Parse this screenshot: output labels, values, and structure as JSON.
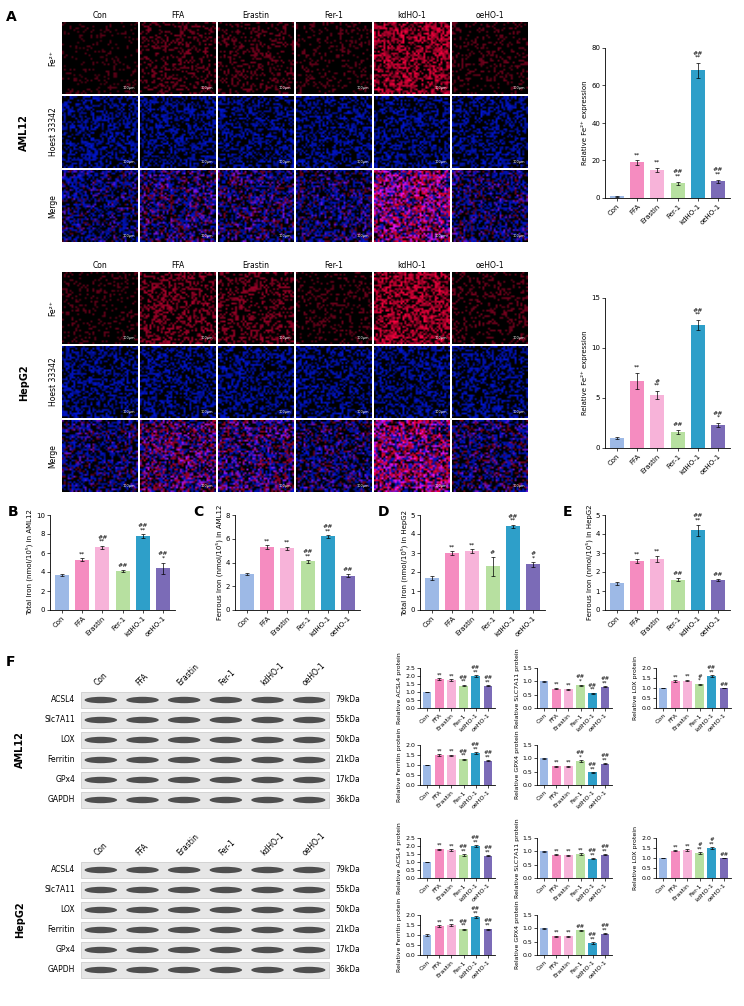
{
  "panel_labels": [
    "A",
    "B",
    "C",
    "D",
    "E",
    "F"
  ],
  "micrographs": [
    {
      "cell_line": "AML12",
      "columns": [
        "Con",
        "FFA",
        "Erastin",
        "Fer-1",
        "kdHO-1",
        "oeHO-1"
      ],
      "rows": [
        "Fe²⁺",
        "Hoest 33342",
        "Merge"
      ],
      "scale_bar": "100μm"
    },
    {
      "cell_line": "HepG2",
      "columns": [
        "Con",
        "FFA",
        "Erastin",
        "Fer-1",
        "kdHO-1",
        "oeHO-1"
      ],
      "rows": [
        "Fe²⁺",
        "Hoest 33342",
        "Merge"
      ],
      "scale_bar": "100μm"
    }
  ],
  "western_blots": [
    {
      "cell_line": "AML12",
      "lanes": [
        "Con",
        "FFA",
        "Erastin",
        "Fer-1",
        "kdHO-1",
        "oeHO-1"
      ],
      "proteins": [
        "ACSL4",
        "Slc7A11",
        "LOX",
        "Ferritin",
        "GPx4",
        "GAPDH"
      ],
      "sizes": [
        "79kDa",
        "55kDa",
        "50kDa",
        "21kDa",
        "17kDa",
        "36kDa"
      ]
    },
    {
      "cell_line": "HepG2",
      "lanes": [
        "Con",
        "FFA",
        "Erastin",
        "Fer-1",
        "kdHO-1",
        "oeHO-1"
      ],
      "proteins": [
        "ACSL4",
        "Slc7A11",
        "LOX",
        "Ferritin",
        "GPx4",
        "GAPDH"
      ],
      "sizes": [
        "79kDa",
        "55kDa",
        "50kDa",
        "21kDa",
        "17kDa",
        "36kDa"
      ]
    }
  ],
  "chart_data": [
    {
      "type": "bar",
      "ylabel": "Relative Fe²⁺ expression",
      "categories": [
        "Con",
        "FFA",
        "Erastin",
        "Fer-1",
        "kdHO-1",
        "oeHO-1"
      ],
      "values": [
        1,
        19,
        15,
        8,
        68,
        9
      ],
      "errors": [
        0.3,
        1.2,
        1.0,
        0.8,
        4,
        0.8
      ],
      "colors": [
        "#9db9e6",
        "#f58cc0",
        "#f7b3d9",
        "#b7e0a0",
        "#2e9fc9",
        "#7b6bb7"
      ],
      "significance": [
        [],
        [
          "**"
        ],
        [
          "**"
        ],
        [
          "##",
          "**"
        ],
        [
          "##",
          "**"
        ],
        [
          "##",
          "**"
        ]
      ],
      "ylim": [
        0,
        80
      ],
      "yticks": [
        0,
        20,
        40,
        60,
        80
      ]
    },
    {
      "type": "bar",
      "ylabel": "Relative Fe²⁺ expression",
      "categories": [
        "Con",
        "FFA",
        "Erastin",
        "Fer-1",
        "kdHO-1",
        "oeHO-1"
      ],
      "values": [
        1,
        6.7,
        5.3,
        1.6,
        12.3,
        2.3
      ],
      "errors": [
        0.1,
        0.8,
        0.4,
        0.2,
        0.5,
        0.2
      ],
      "colors": [
        "#9db9e6",
        "#f58cc0",
        "#f7b3d9",
        "#b7e0a0",
        "#2e9fc9",
        "#7b6bb7"
      ],
      "significance": [
        [],
        [
          "**"
        ],
        [
          "#",
          "**"
        ],
        [
          "##"
        ],
        [
          "##",
          "**"
        ],
        [
          "##",
          "*"
        ]
      ],
      "ylim": [
        0,
        15
      ],
      "yticks": [
        0,
        5,
        10,
        15
      ]
    },
    {
      "type": "bar",
      "ylabel": "Total Iron (nmol/10⁵) in AML12",
      "categories": [
        "Con",
        "FFA",
        "Erastin",
        "Fer-1",
        "kdHO-1",
        "oeHO-1"
      ],
      "values": [
        3.7,
        5.3,
        6.6,
        4.1,
        7.8,
        4.4
      ],
      "errors": [
        0.1,
        0.15,
        0.15,
        0.1,
        0.2,
        0.6
      ],
      "colors": [
        "#9db9e6",
        "#f58cc0",
        "#f7b3d9",
        "#b7e0a0",
        "#2e9fc9",
        "#7b6bb7"
      ],
      "significance": [
        [],
        [
          "**"
        ],
        [
          "##",
          "**"
        ],
        [
          "##"
        ],
        [
          "##",
          "**"
        ],
        [
          "##",
          "*"
        ]
      ],
      "ylim": [
        0,
        10
      ],
      "yticks": [
        0,
        2,
        4,
        6,
        8,
        10
      ]
    },
    {
      "type": "bar",
      "ylabel": "Ferrous Iron (nmol/10⁵) in AML12",
      "categories": [
        "Con",
        "FFA",
        "Erastin",
        "Fer-1",
        "kdHO-1",
        "oeHO-1"
      ],
      "values": [
        3.0,
        5.3,
        5.2,
        4.1,
        6.2,
        2.9
      ],
      "errors": [
        0.08,
        0.15,
        0.12,
        0.1,
        0.1,
        0.1
      ],
      "colors": [
        "#9db9e6",
        "#f58cc0",
        "#f7b3d9",
        "#b7e0a0",
        "#2e9fc9",
        "#7b6bb7"
      ],
      "significance": [
        [],
        [
          "**"
        ],
        [
          "**"
        ],
        [
          "##",
          "**"
        ],
        [
          "##",
          "**"
        ],
        [
          "##"
        ]
      ],
      "ylim": [
        0,
        8
      ],
      "yticks": [
        0,
        2,
        4,
        6,
        8
      ]
    },
    {
      "type": "bar",
      "ylabel": "Total Iron (nmol/10⁵) in HepG2",
      "categories": [
        "Con",
        "FFA",
        "Erastin",
        "Fer-1",
        "kdHO-1",
        "oeHO-1"
      ],
      "values": [
        1.7,
        3.0,
        3.1,
        2.3,
        4.4,
        2.4
      ],
      "errors": [
        0.1,
        0.08,
        0.1,
        0.5,
        0.08,
        0.12
      ],
      "colors": [
        "#9db9e6",
        "#f58cc0",
        "#f7b3d9",
        "#b7e0a0",
        "#2e9fc9",
        "#7b6bb7"
      ],
      "significance": [
        [],
        [
          "**"
        ],
        [
          "**"
        ],
        [
          "#"
        ],
        [
          "##",
          "**"
        ],
        [
          "#",
          "*"
        ]
      ],
      "ylim": [
        0,
        5
      ],
      "yticks": [
        0,
        1,
        2,
        3,
        4,
        5
      ]
    },
    {
      "type": "bar",
      "ylabel": "Ferrous Iron (nmol/10⁵) in HepG2",
      "categories": [
        "Con",
        "FFA",
        "Erastin",
        "Fer-1",
        "kdHO-1",
        "oeHO-1"
      ],
      "values": [
        1.4,
        2.6,
        2.7,
        1.6,
        4.2,
        1.6
      ],
      "errors": [
        0.1,
        0.1,
        0.15,
        0.08,
        0.3,
        0.05
      ],
      "colors": [
        "#9db9e6",
        "#f58cc0",
        "#f7b3d9",
        "#b7e0a0",
        "#2e9fc9",
        "#7b6bb7"
      ],
      "significance": [
        [],
        [
          "**"
        ],
        [
          "**"
        ],
        [
          "##"
        ],
        [
          "##",
          "**"
        ],
        [
          "##"
        ]
      ],
      "ylim": [
        0,
        5
      ],
      "yticks": [
        0,
        1,
        2,
        3,
        4,
        5
      ]
    },
    {
      "type": "bar",
      "ylabel": "Relative ACSL4 protein",
      "categories": [
        "Con",
        "FFA",
        "Erastin",
        "Fer-1",
        "kdHO-1",
        "oeHO-1"
      ],
      "values": [
        1.0,
        1.8,
        1.75,
        1.4,
        2.0,
        1.4
      ],
      "errors": [
        0.02,
        0.05,
        0.05,
        0.05,
        0.07,
        0.04
      ],
      "colors": [
        "#9db9e6",
        "#f58cc0",
        "#f7b3d9",
        "#b7e0a0",
        "#2e9fc9",
        "#7b6bb7"
      ],
      "significance": [
        [],
        [
          "**"
        ],
        [
          "**"
        ],
        [
          "##",
          "**"
        ],
        [
          "##",
          "**"
        ],
        [
          "##",
          "**"
        ]
      ],
      "ylim": [
        0,
        2.5
      ],
      "yticks": [
        {
          "value": 0,
          "label": "0.0"
        },
        0.5,
        {
          "value": 1,
          "label": "1.0"
        },
        1.5,
        {
          "value": 2,
          "label": "2.0"
        },
        2.5
      ]
    },
    {
      "type": "bar",
      "ylabel": "Relative SLC7A11 protein",
      "categories": [
        "Con",
        "FFA",
        "Erastin",
        "Fer-1",
        "kdHO-1",
        "oeHO-1"
      ],
      "values": [
        1.0,
        0.73,
        0.7,
        0.85,
        0.55,
        0.8
      ],
      "errors": [
        0.02,
        0.03,
        0.03,
        0.03,
        0.02,
        0.02
      ],
      "colors": [
        "#9db9e6",
        "#f58cc0",
        "#f7b3d9",
        "#b7e0a0",
        "#2e9fc9",
        "#7b6bb7"
      ],
      "significance": [
        [],
        [
          "**"
        ],
        [
          "**"
        ],
        [
          "##",
          "*"
        ],
        [
          "##",
          "**"
        ],
        [
          "##",
          "**"
        ]
      ],
      "ylim": [
        0,
        1.5
      ],
      "yticks": [
        {
          "value": 0,
          "label": "0.0"
        },
        0.5,
        {
          "value": 1,
          "label": "1.0"
        },
        1.5
      ]
    },
    {
      "type": "bar",
      "ylabel": "Relative LOX protein",
      "categories": [
        "Con",
        "FFA",
        "Erastin",
        "Fer-1",
        "kdHO-1",
        "oeHO-1"
      ],
      "values": [
        1.0,
        1.35,
        1.37,
        1.18,
        1.58,
        1.0
      ],
      "errors": [
        0.02,
        0.05,
        0.04,
        0.03,
        0.05,
        0.02
      ],
      "colors": [
        "#9db9e6",
        "#f58cc0",
        "#f7b3d9",
        "#b7e0a0",
        "#2e9fc9",
        "#7b6bb7"
      ],
      "significance": [
        [],
        [
          "**"
        ],
        [
          "**"
        ],
        [
          "#",
          "*"
        ],
        [
          "##",
          "**"
        ],
        [
          "##"
        ]
      ],
      "ylim": [
        0,
        2.0
      ],
      "yticks": [
        {
          "value": 0,
          "label": "0.0"
        },
        0.5,
        {
          "value": 1,
          "label": "1.0"
        },
        1.5,
        {
          "value": 2,
          "label": "2.0"
        }
      ]
    },
    {
      "type": "bar",
      "ylabel": "Relative Ferritin protein",
      "categories": [
        "Con",
        "FFA",
        "Erastin",
        "Fer-1",
        "kdHO-1",
        "oeHO-1"
      ],
      "values": [
        1.0,
        1.5,
        1.48,
        1.28,
        1.6,
        1.22
      ],
      "errors": [
        0.02,
        0.04,
        0.03,
        0.03,
        0.04,
        0.02
      ],
      "colors": [
        "#9db9e6",
        "#f58cc0",
        "#f7b3d9",
        "#b7e0a0",
        "#2e9fc9",
        "#7b6bb7"
      ],
      "significance": [
        [],
        [
          "**"
        ],
        [
          "**"
        ],
        [
          "##",
          "**"
        ],
        [
          "##",
          "**"
        ],
        [
          "##",
          "**"
        ]
      ],
      "ylim": [
        0,
        2.0
      ],
      "yticks": [
        {
          "value": 0,
          "label": "0.0"
        },
        0.5,
        {
          "value": 1,
          "label": "1.0"
        },
        1.5,
        {
          "value": 2,
          "label": "2.0"
        }
      ]
    },
    {
      "type": "bar",
      "ylabel": "Relative GPX4 protein",
      "categories": [
        "Con",
        "FFA",
        "Erastin",
        "Fer-1",
        "kdHO-1",
        "oeHO-1"
      ],
      "values": [
        1.0,
        0.7,
        0.7,
        0.9,
        0.47,
        0.8
      ],
      "errors": [
        0.02,
        0.02,
        0.02,
        0.03,
        0.02,
        0.02
      ],
      "colors": [
        "#9db9e6",
        "#f58cc0",
        "#f7b3d9",
        "#b7e0a0",
        "#2e9fc9",
        "#7b6bb7"
      ],
      "significance": [
        [],
        [
          "**"
        ],
        [
          "**"
        ],
        [
          "##",
          "*"
        ],
        [
          "##",
          "**"
        ],
        [
          "##",
          "**"
        ]
      ],
      "ylim": [
        0,
        1.5
      ],
      "yticks": [
        {
          "value": 0,
          "label": "0.0"
        },
        0.5,
        {
          "value": 1,
          "label": "1.0"
        },
        1.5
      ]
    },
    {
      "type": "bar",
      "ylabel": "Relative ACSL4 protein",
      "categories": [
        "Con",
        "FFA",
        "Erastin",
        "Fer-1",
        "kdHO-1",
        "oeHO-1"
      ],
      "values": [
        1.0,
        1.8,
        1.75,
        1.45,
        2.0,
        1.4
      ],
      "errors": [
        0.02,
        0.04,
        0.04,
        0.05,
        0.05,
        0.04
      ],
      "colors": [
        "#9db9e6",
        "#f58cc0",
        "#f7b3d9",
        "#b7e0a0",
        "#2e9fc9",
        "#7b6bb7"
      ],
      "significance": [
        [],
        [
          "**"
        ],
        [
          "**"
        ],
        [
          "##",
          "**"
        ],
        [
          "##",
          "**"
        ],
        [
          "##",
          "**"
        ]
      ],
      "ylim": [
        0,
        2.5
      ],
      "yticks": [
        {
          "value": 0,
          "label": "0.0"
        },
        0.5,
        {
          "value": 1,
          "label": "1.0"
        },
        1.5,
        {
          "value": 2,
          "label": "2.0"
        },
        2.5
      ]
    },
    {
      "type": "bar",
      "ylabel": "Relative SLC7A11 protein",
      "categories": [
        "Con",
        "FFA",
        "Erastin",
        "Fer-1",
        "kdHO-1",
        "oeHO-1"
      ],
      "values": [
        1.0,
        0.87,
        0.86,
        0.9,
        0.72,
        0.87
      ],
      "errors": [
        0.02,
        0.02,
        0.02,
        0.02,
        0.02,
        0.02
      ],
      "colors": [
        "#9db9e6",
        "#f58cc0",
        "#f7b3d9",
        "#b7e0a0",
        "#2e9fc9",
        "#7b6bb7"
      ],
      "significance": [
        [],
        [
          "**"
        ],
        [
          "**"
        ],
        [
          "**"
        ],
        [
          "##",
          "**"
        ],
        [
          "##",
          "**"
        ]
      ],
      "ylim": [
        0,
        1.5
      ],
      "yticks": [
        {
          "value": 0,
          "label": "0.0"
        },
        0.5,
        {
          "value": 1,
          "label": "1.0"
        },
        1.5
      ]
    },
    {
      "type": "bar",
      "ylabel": "Relative LOX protein",
      "categories": [
        "Con",
        "FFA",
        "Erastin",
        "Fer-1",
        "kdHO-1",
        "oeHO-1"
      ],
      "values": [
        1.0,
        1.37,
        1.4,
        1.25,
        1.5,
        1.0
      ],
      "errors": [
        0.02,
        0.03,
        0.04,
        0.03,
        0.05,
        0.02
      ],
      "colors": [
        "#9db9e6",
        "#f58cc0",
        "#f7b3d9",
        "#b7e0a0",
        "#2e9fc9",
        "#7b6bb7"
      ],
      "significance": [
        [],
        [
          "**"
        ],
        [
          "**"
        ],
        [
          "#",
          "**"
        ],
        [
          "#",
          "**"
        ],
        [
          "##"
        ]
      ],
      "ylim": [
        0,
        2.0
      ],
      "yticks": [
        {
          "value": 0,
          "label": "0.0"
        },
        0.5,
        {
          "value": 1,
          "label": "1.0"
        },
        1.5,
        {
          "value": 2,
          "label": "2.0"
        }
      ]
    },
    {
      "type": "bar",
      "ylabel": "Relative Ferritin protein",
      "categories": [
        "Con",
        "FFA",
        "Erastin",
        "Fer-1",
        "kdHO-1",
        "oeHO-1"
      ],
      "values": [
        1.0,
        1.45,
        1.5,
        1.28,
        1.9,
        1.28
      ],
      "errors": [
        0.03,
        0.03,
        0.03,
        0.03,
        0.03,
        0.04
      ],
      "colors": [
        "#9db9e6",
        "#f58cc0",
        "#f7b3d9",
        "#b7e0a0",
        "#2e9fc9",
        "#7b6bb7"
      ],
      "significance": [
        [],
        [
          "**"
        ],
        [
          "**"
        ],
        [
          "##",
          "**"
        ],
        [
          "##",
          "**"
        ],
        [
          "##",
          "**"
        ]
      ],
      "ylim": [
        0,
        2.0
      ],
      "yticks": [
        {
          "value": 0,
          "label": "0.0"
        },
        0.5,
        {
          "value": 1,
          "label": "1.0"
        },
        1.5,
        {
          "value": 2,
          "label": "2.0"
        }
      ]
    },
    {
      "type": "bar",
      "ylabel": "Relative GPX4 protein",
      "categories": [
        "Con",
        "FFA",
        "Erastin",
        "Fer-1",
        "kdHO-1",
        "oeHO-1"
      ],
      "values": [
        1.0,
        0.7,
        0.7,
        0.93,
        0.45,
        0.8
      ],
      "errors": [
        0.02,
        0.02,
        0.02,
        0.02,
        0.02,
        0.02
      ],
      "colors": [
        "#9db9e6",
        "#f58cc0",
        "#f7b3d9",
        "#b7e0a0",
        "#2e9fc9",
        "#7b6bb7"
      ],
      "significance": [
        [],
        [
          "**"
        ],
        [
          "**"
        ],
        [
          "##"
        ],
        [
          "##",
          "**"
        ],
        [
          "##",
          "**"
        ]
      ],
      "ylim": [
        0,
        1.5
      ],
      "yticks": [
        {
          "value": 0,
          "label": "0.0"
        },
        0.5,
        {
          "value": 1,
          "label": "1.0"
        },
        1.5
      ]
    }
  ]
}
